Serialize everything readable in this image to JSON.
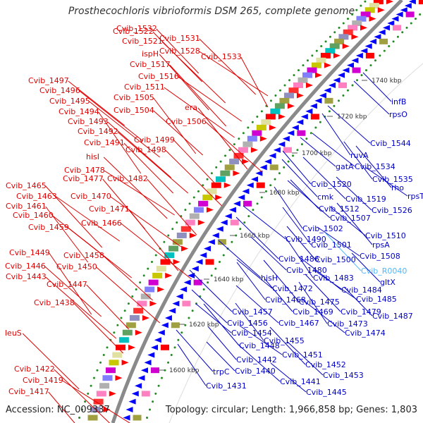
{
  "title": "Prosthecochloris vibrioformis DSM 265, complete genome",
  "accession": "Accession: NC_009337",
  "summary": "Topology: circular; Length: 1,966,858 bp; Genes: 1,803",
  "colors": {
    "leftLabel": "#e00000",
    "rightLabel": "#0000c8",
    "rnaLabel": "#4db8ff",
    "backbone": "#8a8a8a",
    "leftArrow": "#ff0000",
    "rightArrow": "#0000ff",
    "dot": "#228b22"
  },
  "ticks": [
    "1600 kbp",
    "1620 kbp",
    "1640 kbp",
    "1660 kbp",
    "1680 kbp",
    "1700 kbp",
    "1720 kbp",
    "1740 kbp"
  ],
  "left_labels": [
    "Cvib_1532",
    "Cvib_1522",
    "Cvib_1531",
    "Cvib_1521",
    "Cvib_1528",
    "Cvib_1533",
    "ispH",
    "Cvib_1517",
    "Cvib_1516",
    "Cvib_1511",
    "Cvib_1505",
    "era",
    "Cvib_1497",
    "Cvib_1496",
    "Cvib_1495",
    "Cvib_1494",
    "Cvib_1504",
    "Cvib_1506",
    "Cvib_1493",
    "Cvib_1492",
    "Cvib_1499",
    "Cvib_1491",
    "Cvib_1498",
    "hisI",
    "Cvib_1478",
    "Cvib_1477",
    "Cvib_1482",
    "Cvib_1465",
    "Cvib_1463",
    "Cvib_1470",
    "Cvib_1461",
    "Cvib_1471",
    "Cvib_1460",
    "Cvib_1459",
    "Cvib_1466",
    "Cvib_1449",
    "Cvib_1458",
    "Cvib_1446",
    "Cvib_1450",
    "Cvib_1443",
    "Cvib_1447",
    "Cvib_1438",
    "leuS",
    "Cvib_1422",
    "Cvib_1419",
    "Cvib_1417"
  ],
  "right_labels": [
    "infB",
    "rpsO",
    "Cvib_1544",
    "ruvA",
    "gatA",
    "Cvib_1534",
    "Cvib_1535",
    "rho",
    "rpsT",
    "Cvib_1520",
    "cmk",
    "Cvib_1519",
    "Cvib_1512",
    "Cvib_1526",
    "Cvib_1507",
    "Cvib_1502",
    "Cvib_1510",
    "Cvib_1490",
    "Cvib_1501",
    "rpsA",
    "Cvib_1508",
    "Cvib_1500",
    "Cvib_R0040",
    "Cvib_1486",
    "gltX",
    "Cvib_1480",
    "hisH",
    "Cvib_1483",
    "Cvib_1472",
    "Cvib_1484",
    "Cvib_1468",
    "Cvib_1475",
    "Cvib_1485",
    "Cvib_1469",
    "Cvib_1479",
    "Cvib_1457",
    "Cvib_1487",
    "Cvib_1456",
    "Cvib_1467",
    "Cvib_1473",
    "Cvib_1454",
    "Cvib_1474",
    "Cvib_1455",
    "Cvib_1448",
    "Cvib_1451",
    "Cvib_1442",
    "Cvib_1452",
    "trpC",
    "Cvib_1440",
    "Cvib_1453",
    "Cvib_1441",
    "Cvib_1431",
    "Cvib_1445"
  ]
}
